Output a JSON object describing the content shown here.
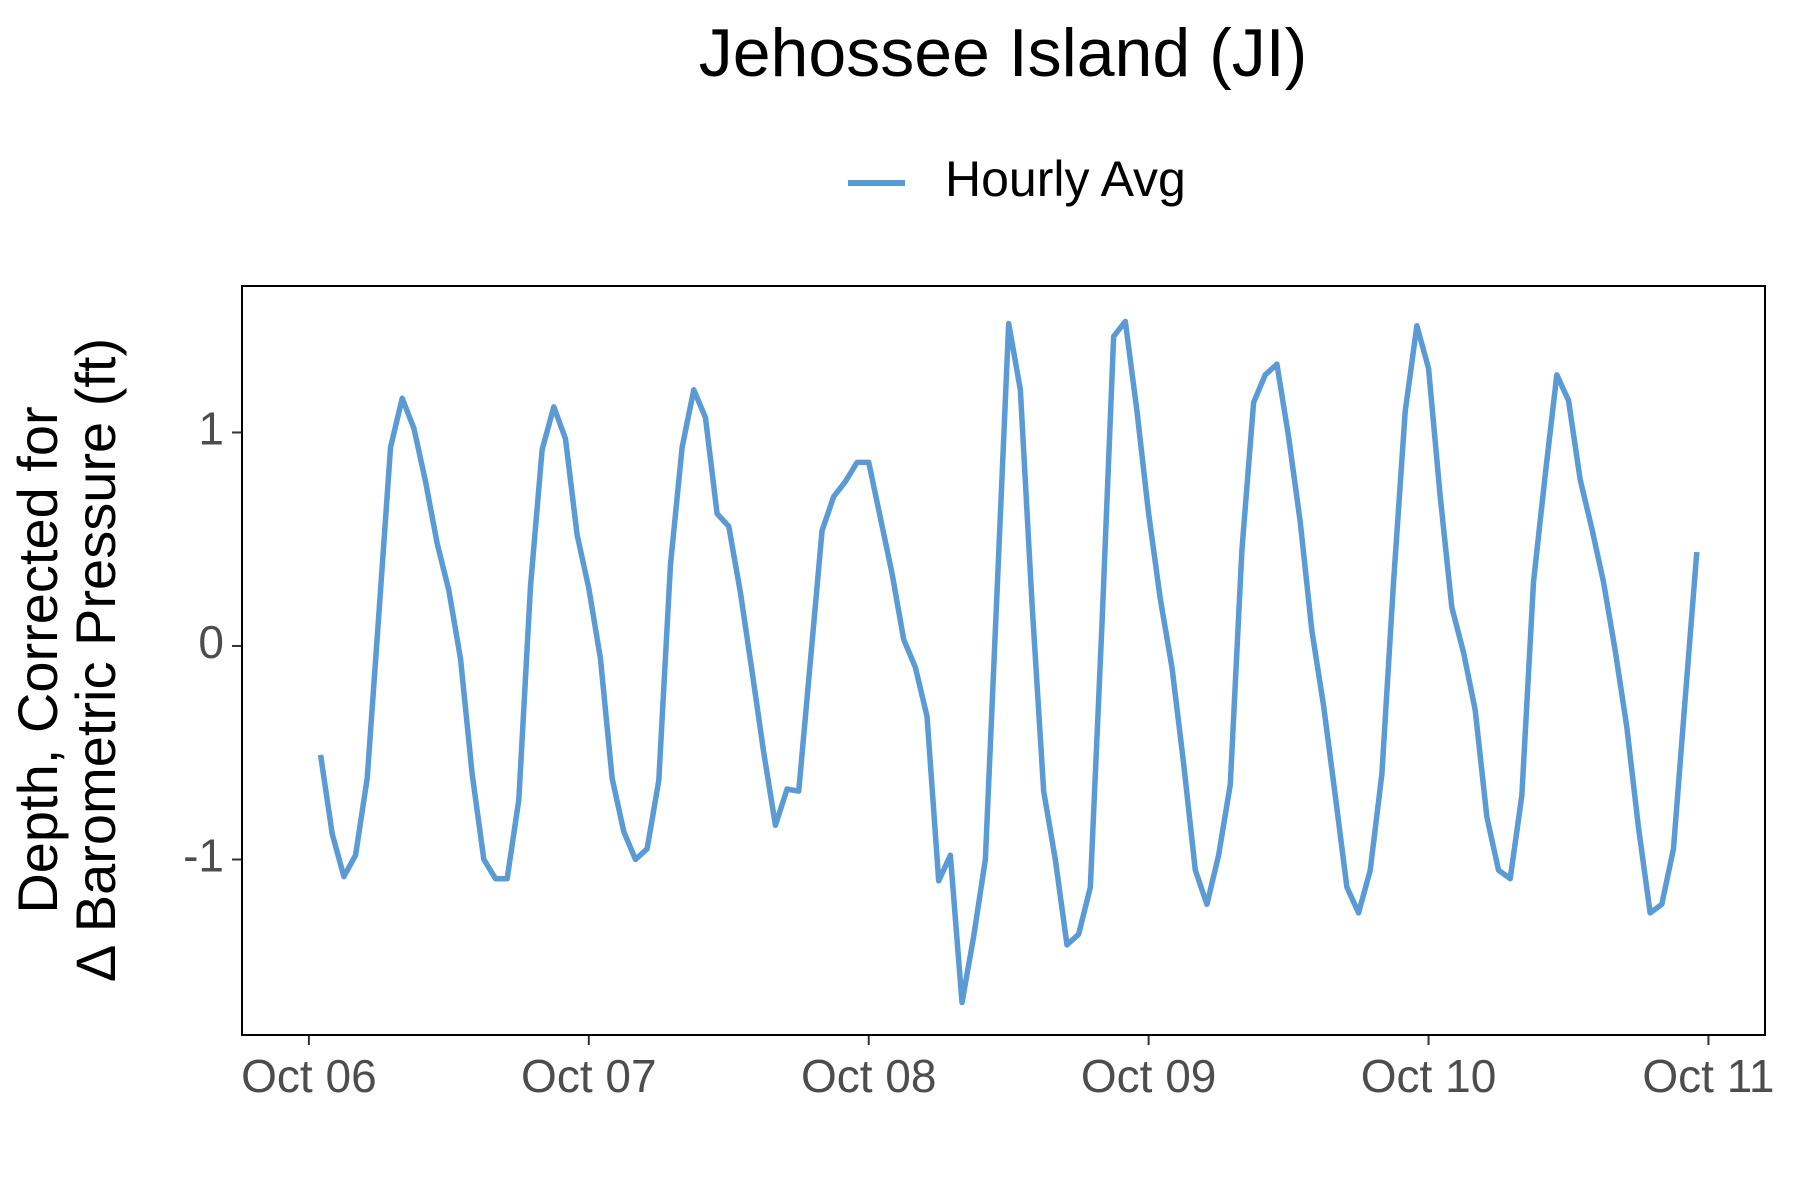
{
  "chart_data": {
    "type": "line",
    "title": "Jehossee Island (JI)",
    "ylabel": [
      "Depth, Corrected for",
      "Δ Barometric Pressure (ft)"
    ],
    "legend": "top",
    "x": [
      6.0417,
      6.0833,
      6.125,
      6.1667,
      6.2083,
      6.25,
      6.2917,
      6.3333,
      6.375,
      6.4167,
      6.4583,
      6.5,
      6.5417,
      6.5833,
      6.625,
      6.6667,
      6.7083,
      6.75,
      6.7917,
      6.8333,
      6.875,
      6.9167,
      6.9583,
      7,
      7.0417,
      7.0833,
      7.125,
      7.1667,
      7.2083,
      7.25,
      7.2917,
      7.3333,
      7.375,
      7.4167,
      7.4583,
      7.5,
      7.5417,
      7.5833,
      7.625,
      7.6667,
      7.7083,
      7.75,
      7.7917,
      7.8333,
      7.875,
      7.9167,
      7.9583,
      8,
      8.0417,
      8.0833,
      8.125,
      8.1667,
      8.2083,
      8.25,
      8.2917,
      8.3333,
      8.375,
      8.4167,
      8.4583,
      8.5,
      8.5417,
      8.5833,
      8.625,
      8.6667,
      8.7083,
      8.75,
      8.7917,
      8.8333,
      8.875,
      8.9167,
      8.9583,
      9,
      9.0417,
      9.0833,
      9.125,
      9.1667,
      9.2083,
      9.25,
      9.2917,
      9.3333,
      9.375,
      9.4167,
      9.4583,
      9.5,
      9.5417,
      9.5833,
      9.625,
      9.6667,
      9.7083,
      9.75,
      9.7917,
      9.8333,
      9.875,
      9.9167,
      9.9583,
      10,
      10.0417,
      10.0833,
      10.125,
      10.1667,
      10.2083,
      10.25,
      10.2917,
      10.3333,
      10.375,
      10.4167,
      10.4583,
      10.5,
      10.5417,
      10.5833,
      10.625,
      10.6667,
      10.7083,
      10.75,
      10.7917,
      10.8333,
      10.875,
      10.9167,
      10.9583
    ],
    "series": [
      {
        "name": "Hourly Avg",
        "color": "#5b9bd5",
        "values": [
          -0.51,
          -0.88,
          -1.08,
          -0.98,
          -0.62,
          0.15,
          0.93,
          1.16,
          1.02,
          0.77,
          0.48,
          0.26,
          -0.06,
          -0.6,
          -1.0,
          -1.09,
          -1.09,
          -0.72,
          0.28,
          0.92,
          1.12,
          0.97,
          0.52,
          0.27,
          -0.06,
          -0.62,
          -0.87,
          -1.0,
          -0.95,
          -0.63,
          0.38,
          0.93,
          1.2,
          1.07,
          0.62,
          0.56,
          0.25,
          -0.12,
          -0.5,
          -0.84,
          -0.67,
          -0.68,
          -0.07,
          0.54,
          0.7,
          0.77,
          0.86,
          0.86,
          0.6,
          0.34,
          0.03,
          -0.1,
          -0.33,
          -1.1,
          -0.98,
          -1.67,
          -1.36,
          -1.0,
          0.25,
          1.51,
          1.2,
          0.2,
          -0.68,
          -1.0,
          -1.4,
          -1.35,
          -1.13,
          0.1,
          1.45,
          1.52,
          1.1,
          0.62,
          0.22,
          -0.1,
          -0.55,
          -1.05,
          -1.21,
          -0.98,
          -0.65,
          0.45,
          1.14,
          1.27,
          1.32,
          0.98,
          0.58,
          0.07,
          -0.28,
          -0.7,
          -1.13,
          -1.25,
          -1.05,
          -0.6,
          0.3,
          1.1,
          1.5,
          1.3,
          0.7,
          0.18,
          -0.03,
          -0.3,
          -0.8,
          -1.05,
          -1.09,
          -0.7,
          0.3,
          0.8,
          1.27,
          1.15,
          0.78,
          0.55,
          0.3,
          -0.02,
          -0.38,
          -0.85,
          -1.25,
          -1.21,
          -0.95,
          -0.25,
          0.44
        ]
      }
    ],
    "xlim": [
      5.761,
      11.202
    ],
    "xticks": [
      {
        "value": 6,
        "label": "Oct 06"
      },
      {
        "value": 7,
        "label": "Oct 07"
      },
      {
        "value": 8,
        "label": "Oct 08"
      },
      {
        "value": 9,
        "label": "Oct 09"
      },
      {
        "value": 10,
        "label": "Oct 10"
      },
      {
        "value": 11,
        "label": "Oct 11"
      }
    ],
    "ylim": [
      -1.822,
      1.686
    ],
    "yticks": [
      -1,
      0,
      1
    ],
    "grid": false
  }
}
